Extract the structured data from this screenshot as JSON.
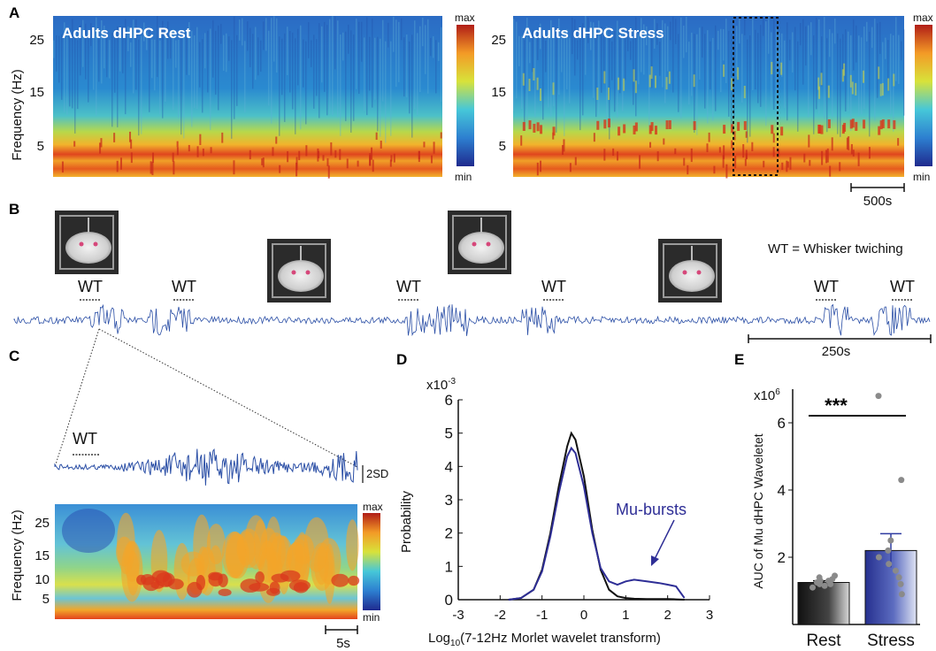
{
  "panel_a": {
    "letter": "A",
    "ylabel": "Frequency (Hz)",
    "yticks": [
      "25",
      "15",
      "5"
    ],
    "left_title": "Adults dHPC Rest",
    "right_title": "Adults dHPC Stress",
    "colorbar": {
      "max": "max",
      "min": "min"
    },
    "scalebar": "500s"
  },
  "panel_b": {
    "letter": "B",
    "legend": "WT = Whisker twiching",
    "event_label": "WT",
    "event_count": 6,
    "scalebar": "250s"
  },
  "panel_c": {
    "letter": "C",
    "event_label": "WT",
    "trace_scale": "2SD",
    "ylabel": "Frequency (Hz)",
    "yticks": [
      "25",
      "15",
      "10",
      "5"
    ],
    "colorbar": {
      "max": "max",
      "min": "min"
    },
    "scalebar": "5s"
  },
  "panel_d": {
    "letter": "D",
    "ylabel": "Probability",
    "multiplier": "x10",
    "multiplier_exp": "-3",
    "xlabel_pre": "Log",
    "xlabel_sub": "10",
    "xlabel_post": "(7-12Hz Morlet wavelet transform)",
    "annotation": "Mu-bursts",
    "colors": {
      "rest": "#111111",
      "stress": "#2e2e96"
    },
    "chart_data": {
      "type": "line",
      "xlim": [
        -3,
        3
      ],
      "ylim": [
        0,
        6
      ],
      "xticks": [
        "-3",
        "-2",
        "-1",
        "0",
        "1",
        "2",
        "3"
      ],
      "yticks": [
        "0",
        "1",
        "2",
        "3",
        "4",
        "5",
        "6"
      ],
      "series": [
        {
          "x": [
            -1.8,
            -1.5,
            -1.2,
            -1.0,
            -0.8,
            -0.6,
            -0.4,
            -0.3,
            -0.2,
            0.0,
            0.2,
            0.4,
            0.6,
            0.8,
            1.0,
            1.2,
            1.5,
            1.8,
            2.0,
            2.2,
            2.4
          ],
          "y": [
            0.0,
            0.05,
            0.3,
            0.9,
            2.0,
            3.4,
            4.6,
            5.0,
            4.8,
            3.7,
            2.1,
            0.9,
            0.3,
            0.1,
            0.05,
            0.03,
            0.02,
            0.02,
            0.02,
            0.01,
            0.0
          ]
        },
        {
          "x": [
            -1.8,
            -1.5,
            -1.2,
            -1.0,
            -0.8,
            -0.6,
            -0.4,
            -0.3,
            -0.2,
            0.0,
            0.2,
            0.4,
            0.6,
            0.8,
            1.0,
            1.2,
            1.5,
            1.8,
            2.0,
            2.2,
            2.4
          ],
          "y": [
            0.0,
            0.05,
            0.3,
            0.85,
            1.9,
            3.2,
            4.3,
            4.55,
            4.4,
            3.4,
            2.0,
            0.95,
            0.55,
            0.45,
            0.55,
            0.6,
            0.55,
            0.5,
            0.45,
            0.4,
            0.05
          ]
        }
      ]
    }
  },
  "panel_e": {
    "letter": "E",
    "ylabel": "AUC of Mu dHPC Waveletet",
    "multiplier": "x10",
    "multiplier_exp": "6",
    "significance": "***",
    "colors": {
      "rest": "#222222",
      "stress": "#2e3aa0",
      "dots": "#8a8a8a"
    },
    "chart_data": {
      "type": "bar",
      "categories": [
        "Rest",
        "Stress"
      ],
      "values": [
        1.25,
        2.2
      ],
      "errors": [
        0.05,
        0.5
      ],
      "ylim": [
        0,
        7
      ],
      "yticks": [
        "2",
        "4",
        "6"
      ],
      "points": {
        "Rest": [
          1.1,
          1.15,
          1.2,
          1.25,
          1.3,
          1.35,
          1.4,
          1.45,
          1.2,
          1.3
        ],
        "Stress": [
          0.9,
          1.2,
          1.4,
          1.6,
          1.8,
          2.0,
          2.2,
          2.5,
          4.3,
          6.8
        ]
      }
    }
  }
}
